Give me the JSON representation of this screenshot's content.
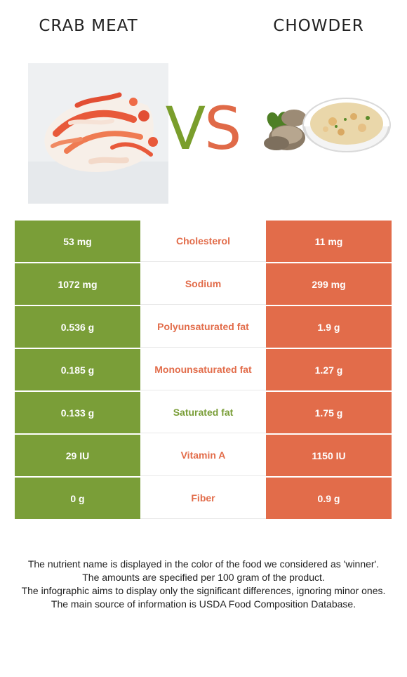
{
  "header": {
    "left_food": "CRAB MEAT",
    "right_food": "CHOWDER",
    "vs_v": "V",
    "vs_s": "S"
  },
  "colors": {
    "left": "#7a9e38",
    "right": "#e26c4a"
  },
  "rows": [
    {
      "left": "53 mg",
      "nutrient": "Cholesterol",
      "right": "11 mg",
      "winner": "right"
    },
    {
      "left": "1072 mg",
      "nutrient": "Sodium",
      "right": "299 mg",
      "winner": "right"
    },
    {
      "left": "0.536 g",
      "nutrient": "Polyunsaturated fat",
      "right": "1.9 g",
      "winner": "right"
    },
    {
      "left": "0.185 g",
      "nutrient": "Monounsaturated fat",
      "right": "1.27 g",
      "winner": "right"
    },
    {
      "left": "0.133 g",
      "nutrient": "Saturated fat",
      "right": "1.75 g",
      "winner": "left"
    },
    {
      "left": "29 IU",
      "nutrient": "Vitamin A",
      "right": "1150 IU",
      "winner": "right"
    },
    {
      "left": "0 g",
      "nutrient": "Fiber",
      "right": "0.9 g",
      "winner": "right"
    }
  ],
  "notes": [
    "The nutrient name is displayed in the color of the food we considered as 'winner'.",
    "The amounts are specified per 100 gram of the product.",
    "The infographic aims to display only the significant differences, ignoring minor ones.",
    "The main source of information is USDA Food Composition Database."
  ]
}
